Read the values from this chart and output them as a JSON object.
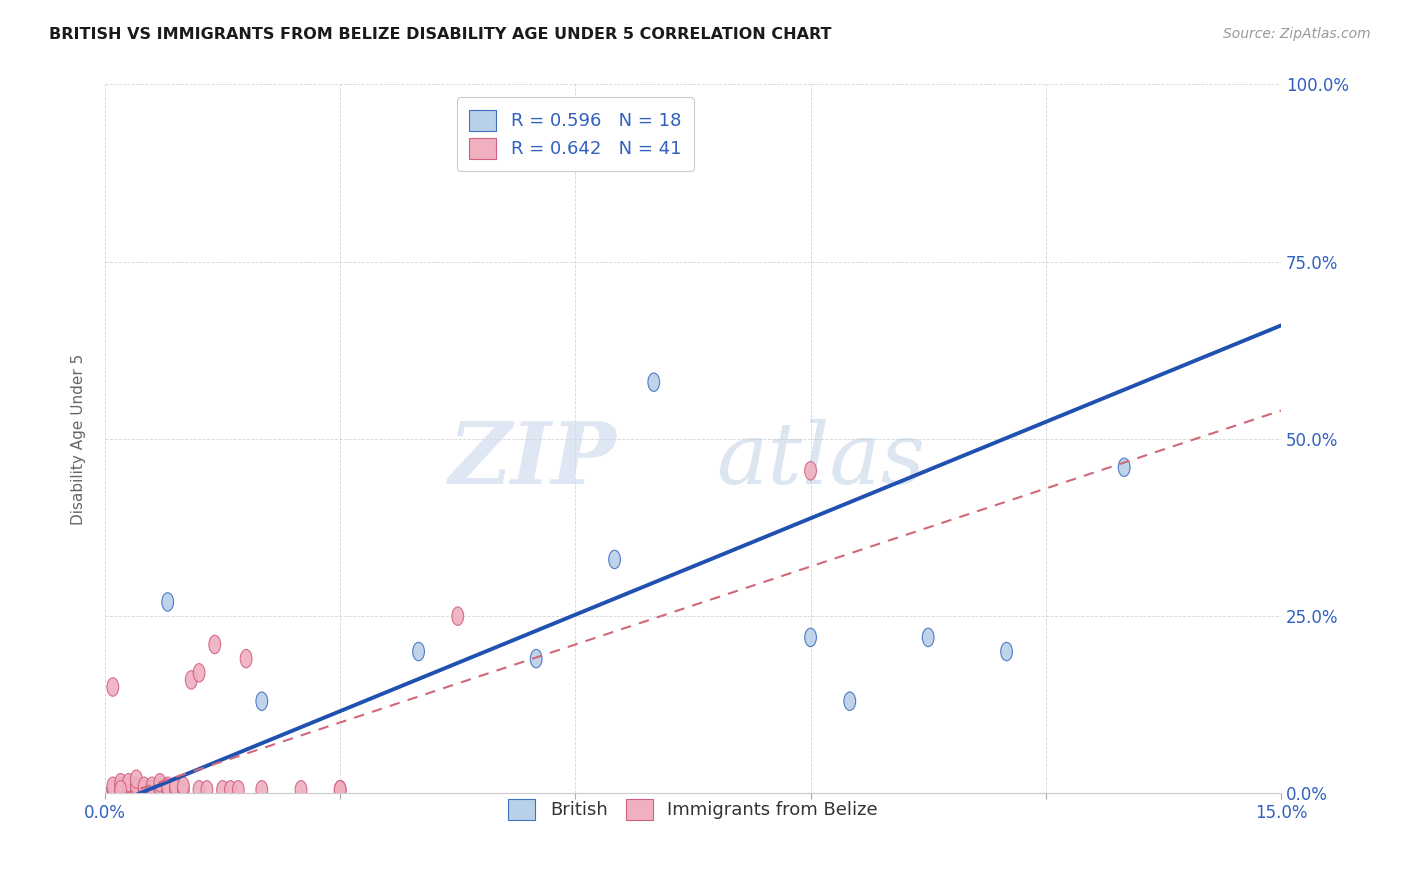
{
  "title": "BRITISH VS IMMIGRANTS FROM BELIZE DISABILITY AGE UNDER 5 CORRELATION CHART",
  "source": "Source: ZipAtlas.com",
  "ylabel": "Disability Age Under 5",
  "xlim": [
    0.0,
    0.15
  ],
  "ylim": [
    0.0,
    1.0
  ],
  "xticks": [
    0.0,
    0.03,
    0.06,
    0.09,
    0.12,
    0.15
  ],
  "xtick_labels": [
    "0.0%",
    "",
    "",
    "",
    "",
    "15.0%"
  ],
  "ytick_labels_right": [
    "0.0%",
    "25.0%",
    "50.0%",
    "75.0%",
    "100.0%"
  ],
  "yticks_right": [
    0.0,
    0.25,
    0.5,
    0.75,
    1.0
  ],
  "british_color": "#b8d0e8",
  "belize_color": "#f0b0c0",
  "british_edge_color": "#4070c0",
  "belize_edge_color": "#d06080",
  "british_line_color": "#2050b0",
  "belize_line_color": "#d06878",
  "R_british": 0.596,
  "N_british": 18,
  "R_belize": 0.642,
  "N_belize": 41,
  "british_x": [
    0.001,
    0.002,
    0.003,
    0.004,
    0.005,
    0.007,
    0.008,
    0.009,
    0.02,
    0.04,
    0.055,
    0.065,
    0.07,
    0.09,
    0.095,
    0.105,
    0.115,
    0.13
  ],
  "british_y": [
    0.005,
    0.005,
    0.005,
    0.005,
    0.005,
    0.005,
    0.27,
    0.005,
    0.13,
    0.2,
    0.19,
    0.33,
    0.58,
    0.22,
    0.13,
    0.22,
    0.2,
    0.46
  ],
  "belize_x": [
    0.001,
    0.001,
    0.002,
    0.002,
    0.002,
    0.003,
    0.003,
    0.003,
    0.004,
    0.004,
    0.004,
    0.005,
    0.005,
    0.006,
    0.006,
    0.007,
    0.007,
    0.007,
    0.008,
    0.008,
    0.009,
    0.009,
    0.01,
    0.01,
    0.011,
    0.012,
    0.012,
    0.013,
    0.014,
    0.015,
    0.016,
    0.017,
    0.018,
    0.02,
    0.025,
    0.03,
    0.03,
    0.045,
    0.09,
    0.001,
    0.002
  ],
  "belize_y": [
    0.005,
    0.01,
    0.005,
    0.01,
    0.015,
    0.005,
    0.01,
    0.015,
    0.005,
    0.01,
    0.02,
    0.005,
    0.01,
    0.005,
    0.01,
    0.005,
    0.01,
    0.015,
    0.005,
    0.01,
    0.005,
    0.01,
    0.005,
    0.01,
    0.16,
    0.005,
    0.17,
    0.005,
    0.21,
    0.005,
    0.005,
    0.005,
    0.19,
    0.005,
    0.005,
    0.005,
    0.005,
    0.25,
    0.455,
    0.15,
    0.005
  ],
  "british_line_x0": 0.0,
  "british_line_y0": -0.02,
  "british_line_x1": 0.15,
  "british_line_y1": 0.66,
  "belize_line_x0": 0.0,
  "belize_line_y0": -0.01,
  "belize_line_x1": 0.15,
  "belize_line_y1": 0.54,
  "watermark_zip": "ZIP",
  "watermark_atlas": "atlas",
  "background_color": "#ffffff",
  "grid_color": "#cccccc"
}
